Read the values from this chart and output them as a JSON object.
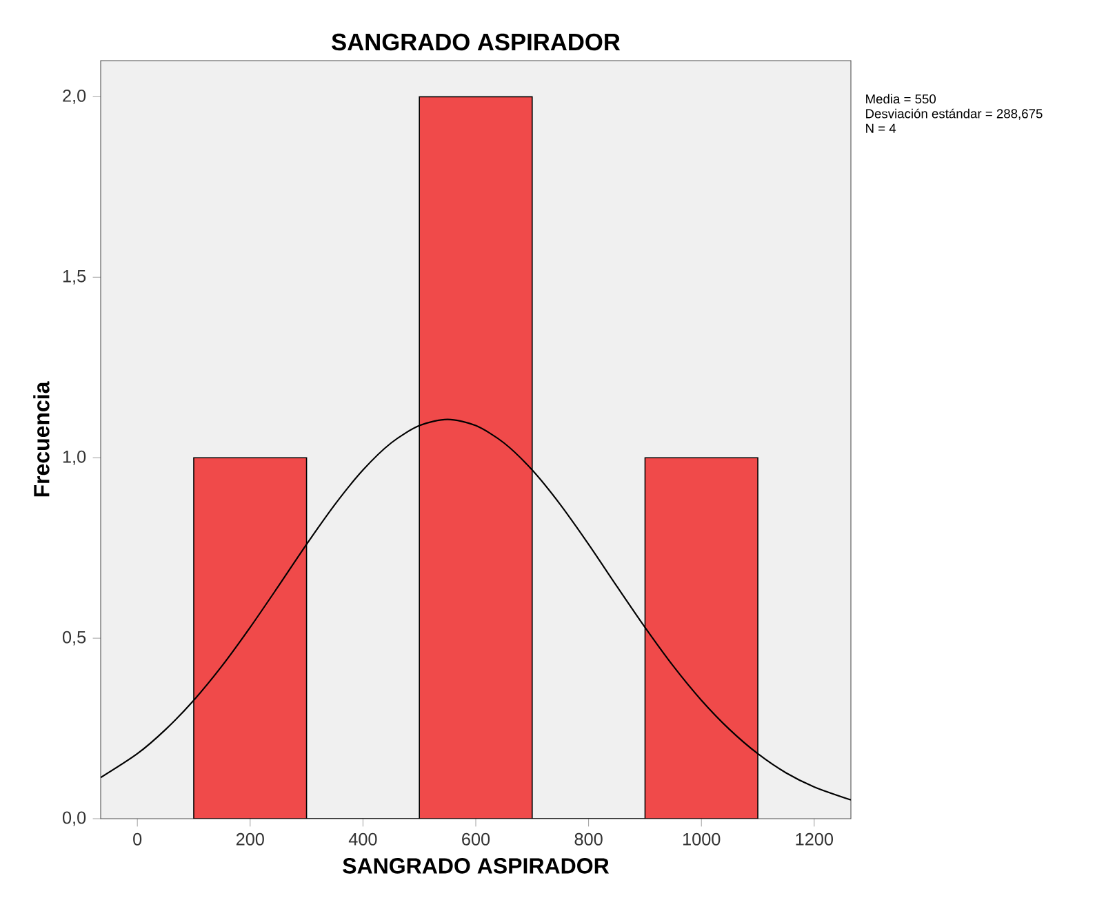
{
  "chart_data": {
    "type": "histogram",
    "title": "SANGRADO ASPIRADOR",
    "xlabel": "SANGRADO ASPIRADOR",
    "ylabel": "Frecuencia",
    "annotations": [
      "Media = 550",
      "Desviación estándar = 288,675",
      "N = 4"
    ],
    "series": [
      {
        "color": "#f04a4a",
        "bins": [
          100,
          300,
          500,
          700,
          900,
          1100
        ],
        "values": [
          1,
          0,
          2,
          0,
          1
        ]
      },
      {
        "type": "line",
        "color": "#000000",
        "x": [
          -65,
          0,
          50,
          100,
          150,
          200,
          250,
          300,
          350,
          400,
          450,
          500,
          550,
          600,
          650,
          700,
          750,
          800,
          850,
          900,
          950,
          1000,
          1050,
          1100,
          1150,
          1200,
          1265
        ],
        "values": [
          0.114,
          0.18,
          0.247,
          0.328,
          0.423,
          0.53,
          0.644,
          0.76,
          0.87,
          0.966,
          1.041,
          1.089,
          1.106,
          1.089,
          1.041,
          0.966,
          0.87,
          0.76,
          0.644,
          0.53,
          0.423,
          0.328,
          0.247,
          0.18,
          0.127,
          0.088,
          0.052
        ]
      }
    ],
    "xlim": [
      -65,
      1265
    ],
    "ylim": [
      0,
      2.1
    ],
    "xticks": [
      0,
      200,
      400,
      600,
      800,
      1000,
      1200
    ],
    "yticks": [
      {
        "value": 0,
        "label": "0,0"
      },
      {
        "value": 0.5,
        "label": "0,5"
      },
      {
        "value": 1,
        "label": "1,0"
      },
      {
        "value": 1.5,
        "label": "1,5"
      },
      {
        "value": 2,
        "label": "2,0"
      }
    ],
    "grid": false,
    "marker": "none",
    "line_style": "solid"
  }
}
